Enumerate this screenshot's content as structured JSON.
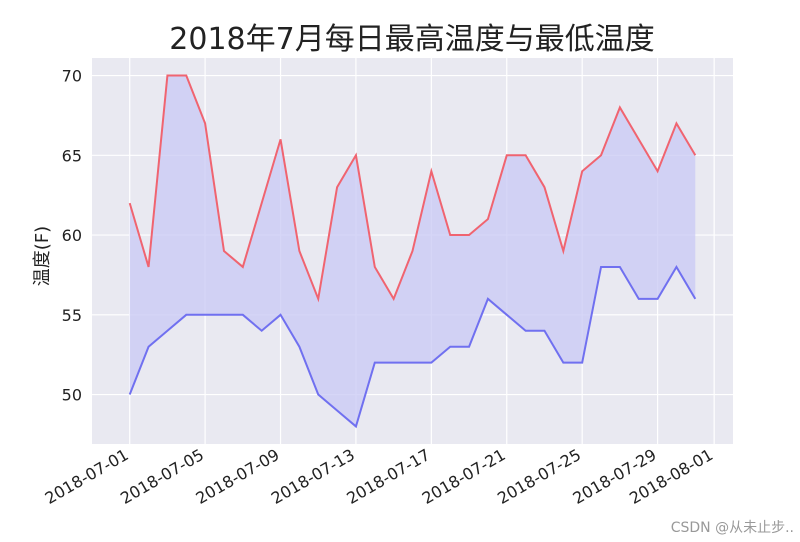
{
  "chart_data": {
    "type": "area",
    "title": "2018年7月每日最高温度与最低温度",
    "xlabel": "",
    "ylabel": "温度(F)",
    "x": [
      "2018-07-01",
      "2018-07-02",
      "2018-07-03",
      "2018-07-04",
      "2018-07-05",
      "2018-07-06",
      "2018-07-07",
      "2018-07-08",
      "2018-07-09",
      "2018-07-10",
      "2018-07-11",
      "2018-07-12",
      "2018-07-13",
      "2018-07-14",
      "2018-07-15",
      "2018-07-16",
      "2018-07-17",
      "2018-07-18",
      "2018-07-19",
      "2018-07-20",
      "2018-07-21",
      "2018-07-22",
      "2018-07-23",
      "2018-07-24",
      "2018-07-25",
      "2018-07-26",
      "2018-07-27",
      "2018-07-28",
      "2018-07-29",
      "2018-07-30",
      "2018-07-31"
    ],
    "series": [
      {
        "values": [
          62,
          58,
          70,
          70,
          67,
          59,
          58,
          62,
          66,
          59,
          56,
          63,
          65,
          58,
          56,
          59,
          64,
          60,
          60,
          61,
          65,
          65,
          63,
          59,
          64,
          65,
          68,
          66,
          64,
          67,
          65
        ]
      },
      {
        "values": [
          50,
          53,
          54,
          55,
          55,
          55,
          55,
          54,
          55,
          53,
          50,
          49,
          48,
          52,
          52,
          52,
          52,
          53,
          53,
          56,
          55,
          54,
          54,
          52,
          52,
          58,
          58,
          56,
          56,
          58,
          56
        ]
      }
    ],
    "xticks": [
      "2018-07-01",
      "2018-07-05",
      "2018-07-09",
      "2018-07-13",
      "2018-07-17",
      "2018-07-21",
      "2018-07-25",
      "2018-07-29",
      "2018-08-01"
    ],
    "yticks": [
      50,
      55,
      60,
      65,
      70
    ],
    "xlim": [
      "2018-06-29",
      "2018-08-02"
    ],
    "ylim": [
      46.9,
      71.1
    ],
    "grid": true,
    "colors": {
      "high": "#f06470",
      "low": "#7070f0",
      "fill": "#c8c8f4",
      "background": "#e9e9f1",
      "grid": "#ffffff"
    }
  },
  "watermark": "CSDN @从未止步.."
}
